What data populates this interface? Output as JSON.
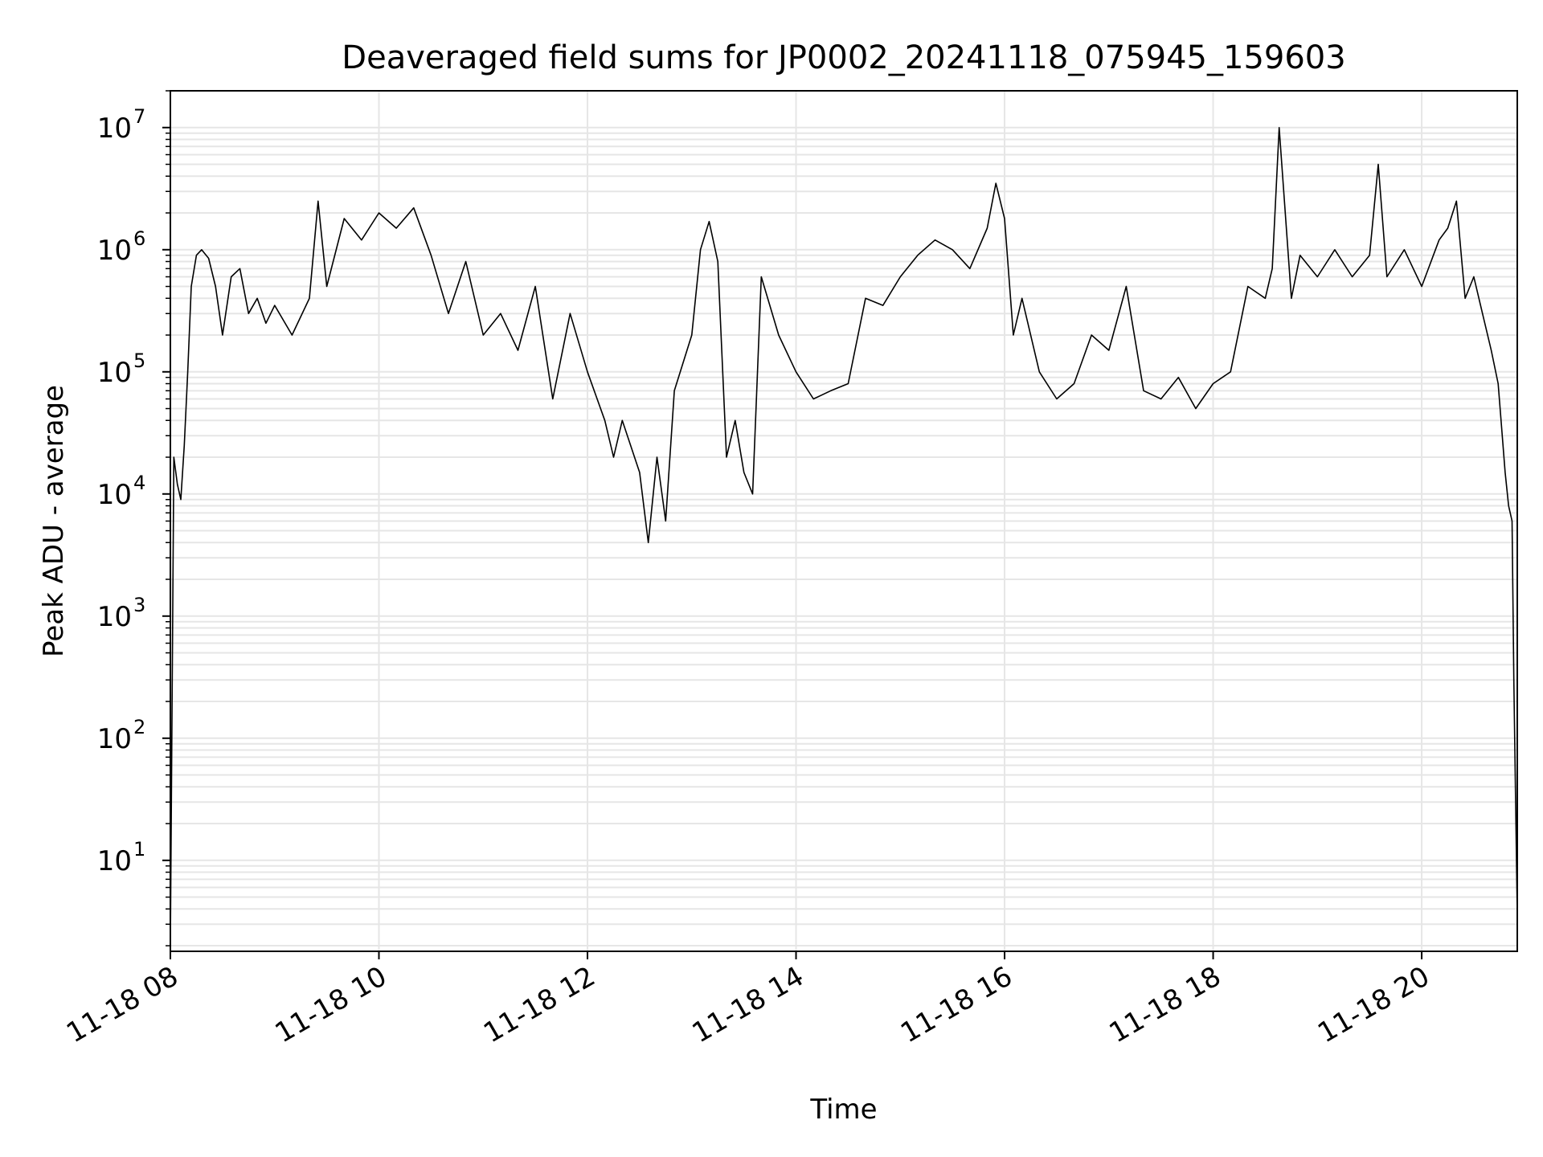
{
  "chart_data": {
    "type": "line",
    "title": "Deaveraged field sums for JP0002_20241118_075945_159603",
    "xlabel": "Time",
    "ylabel": "Peak ADU - average",
    "yscale": "log",
    "grid": true,
    "line_color": "#000000",
    "grid_color": "#e6e6e6",
    "xlim": [
      "11-18 08:00",
      "11-18 20:55"
    ],
    "ylim": [
      1.8,
      20000000
    ],
    "x_ticks": [
      {
        "value": "11-18 08:00",
        "label": "11-18 08"
      },
      {
        "value": "11-18 10:00",
        "label": "11-18 10"
      },
      {
        "value": "11-18 12:00",
        "label": "11-18 12"
      },
      {
        "value": "11-18 14:00",
        "label": "11-18 14"
      },
      {
        "value": "11-18 16:00",
        "label": "11-18 16"
      },
      {
        "value": "11-18 18:00",
        "label": "11-18 18"
      },
      {
        "value": "11-18 20:00",
        "label": "11-18 20"
      }
    ],
    "y_ticks": [
      {
        "value": 10,
        "base": "10",
        "exp": "1"
      },
      {
        "value": 100,
        "base": "10",
        "exp": "2"
      },
      {
        "value": 1000,
        "base": "10",
        "exp": "3"
      },
      {
        "value": 10000,
        "base": "10",
        "exp": "4"
      },
      {
        "value": 100000,
        "base": "10",
        "exp": "5"
      },
      {
        "value": 1000000,
        "base": "10",
        "exp": "6"
      },
      {
        "value": 10000000,
        "base": "10",
        "exp": "7"
      }
    ],
    "series": [
      {
        "x": [
          "11-18 08:00",
          "11-18 08:02",
          "11-18 08:04",
          "11-18 08:06",
          "11-18 08:08",
          "11-18 08:10",
          "11-18 08:12",
          "11-18 08:15",
          "11-18 08:18",
          "11-18 08:22",
          "11-18 08:26",
          "11-18 08:30",
          "11-18 08:35",
          "11-18 08:40",
          "11-18 08:45",
          "11-18 08:50",
          "11-18 08:55",
          "11-18 09:00",
          "11-18 09:10",
          "11-18 09:20",
          "11-18 09:25",
          "11-18 09:30",
          "11-18 09:40",
          "11-18 09:50",
          "11-18 10:00",
          "11-18 10:10",
          "11-18 10:20",
          "11-18 10:30",
          "11-18 10:40",
          "11-18 10:50",
          "11-18 11:00",
          "11-18 11:10",
          "11-18 11:20",
          "11-18 11:30",
          "11-18 11:40",
          "11-18 11:50",
          "11-18 12:00",
          "11-18 12:10",
          "11-18 12:15",
          "11-18 12:20",
          "11-18 12:30",
          "11-18 12:35",
          "11-18 12:40",
          "11-18 12:45",
          "11-18 12:50",
          "11-18 13:00",
          "11-18 13:05",
          "11-18 13:10",
          "11-18 13:15",
          "11-18 13:20",
          "11-18 13:25",
          "11-18 13:30",
          "11-18 13:35",
          "11-18 13:40",
          "11-18 13:50",
          "11-18 14:00",
          "11-18 14:10",
          "11-18 14:20",
          "11-18 14:30",
          "11-18 14:40",
          "11-18 14:50",
          "11-18 15:00",
          "11-18 15:10",
          "11-18 15:20",
          "11-18 15:30",
          "11-18 15:40",
          "11-18 15:50",
          "11-18 15:55",
          "11-18 16:00",
          "11-18 16:05",
          "11-18 16:10",
          "11-18 16:20",
          "11-18 16:30",
          "11-18 16:40",
          "11-18 16:50",
          "11-18 17:00",
          "11-18 17:10",
          "11-18 17:20",
          "11-18 17:30",
          "11-18 17:40",
          "11-18 17:50",
          "11-18 18:00",
          "11-18 18:10",
          "11-18 18:20",
          "11-18 18:30",
          "11-18 18:34",
          "11-18 18:38",
          "11-18 18:45",
          "11-18 18:50",
          "11-18 19:00",
          "11-18 19:10",
          "11-18 19:20",
          "11-18 19:30",
          "11-18 19:35",
          "11-18 19:40",
          "11-18 19:50",
          "11-18 20:00",
          "11-18 20:10",
          "11-18 20:15",
          "11-18 20:20",
          "11-18 20:25",
          "11-18 20:30",
          "11-18 20:35",
          "11-18 20:40",
          "11-18 20:44",
          "11-18 20:48",
          "11-18 20:50",
          "11-18 20:52",
          "11-18 20:53",
          "11-18 20:55"
        ],
        "y": [
          2,
          20000,
          12000,
          9000,
          25000,
          100000,
          500000,
          900000,
          1000000,
          850000,
          500000,
          200000,
          600000,
          700000,
          300000,
          400000,
          250000,
          350000,
          200000,
          400000,
          2500000,
          500000,
          1800000,
          1200000,
          2000000,
          1500000,
          2200000,
          900000,
          300000,
          800000,
          200000,
          300000,
          150000,
          500000,
          60000,
          300000,
          100000,
          40000,
          20000,
          40000,
          15000,
          4000,
          20000,
          6000,
          70000,
          200000,
          1000000,
          1700000,
          800000,
          20000,
          40000,
          15000,
          10000,
          600000,
          200000,
          100000,
          60000,
          70000,
          80000,
          400000,
          350000,
          600000,
          900000,
          1200000,
          1000000,
          700000,
          1500000,
          3500000,
          1800000,
          200000,
          400000,
          100000,
          60000,
          80000,
          200000,
          150000,
          500000,
          70000,
          60000,
          90000,
          50000,
          80000,
          100000,
          500000,
          400000,
          700000,
          10000000,
          400000,
          900000,
          600000,
          1000000,
          600000,
          900000,
          5000000,
          600000,
          1000000,
          500000,
          1200000,
          1500000,
          2500000,
          400000,
          600000,
          300000,
          150000,
          80000,
          15000,
          8000,
          6000,
          300,
          3.5
        ]
      }
    ]
  }
}
